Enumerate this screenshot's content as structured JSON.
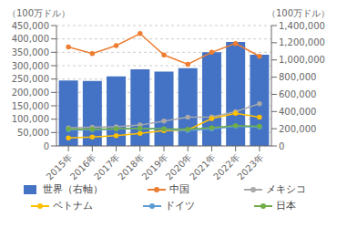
{
  "chart_data": {
    "type": "bar",
    "categories": [
      "2015年",
      "2016年",
      "2017年",
      "2018年",
      "2019年",
      "2020年",
      "2021年",
      "2022年",
      "2023年"
    ],
    "ylabel": "（100万ドル）",
    "y2label": "（100万ドル）",
    "ylim": [
      0,
      450000
    ],
    "yticks": [
      0,
      {
        "value": 50000,
        "label": "50,000"
      },
      {
        "value": 100000,
        "label": "100,000"
      },
      {
        "value": 150000,
        "label": "150,000"
      },
      {
        "value": 200000,
        "label": "200,000"
      },
      {
        "value": 250000,
        "label": "250,000"
      },
      {
        "value": 300000,
        "label": "300,000"
      },
      {
        "value": 350000,
        "label": "350,000"
      },
      {
        "value": 400000,
        "label": "400,000"
      },
      {
        "value": 450000,
        "label": "450,000"
      }
    ],
    "y2lim": [
      0,
      1400000
    ],
    "y2ticks": [
      0,
      {
        "value": 200000,
        "label": "200,000"
      },
      {
        "value": 400000,
        "label": "400,000"
      },
      {
        "value": 600000,
        "label": "600,000"
      },
      {
        "value": 800000,
        "label": "800,000"
      },
      {
        "value": 1000000,
        "label": "1,000,000"
      },
      {
        "value": 1200000,
        "label": "1,200,000"
      },
      {
        "value": 1400000,
        "label": "1,400,000"
      }
    ],
    "grid": true,
    "legend": "bottom",
    "series": [
      {
        "name": "世界（右軸）",
        "type": "bar",
        "axis": "y2",
        "color": "#4472C4",
        "values": [
          760000,
          755000,
          810000,
          890000,
          865000,
          905000,
          1090000,
          1210000,
          1060000
        ]
      },
      {
        "name": "中国",
        "type": "line",
        "marker": "circle",
        "color": "#ED7D31",
        "values": [
          370000,
          345000,
          375000,
          420000,
          340000,
          305000,
          350000,
          383000,
          335000
        ]
      },
      {
        "name": "メキシコ",
        "type": "line",
        "marker": "circle",
        "color": "#A9A9A9",
        "values": [
          67000,
          70000,
          72000,
          78000,
          93000,
          107000,
          108000,
          128000,
          158000
        ]
      },
      {
        "name": "ベトナム",
        "type": "line",
        "marker": "circle",
        "color": "#FFC000",
        "values": [
          30000,
          33000,
          38000,
          47000,
          57000,
          60000,
          102000,
          122000,
          107000
        ]
      },
      {
        "name": "ドイツ",
        "type": "line",
        "marker": "circle",
        "color": "#5B9BD5",
        "values": [
          60000,
          60000,
          63000,
          65000,
          63000,
          57000,
          63000,
          73000,
          70000
        ]
      },
      {
        "name": "日本",
        "type": "line",
        "marker": "circle",
        "color": "#70AD47",
        "values": [
          63000,
          62000,
          64000,
          66000,
          64000,
          62000,
          68000,
          76000,
          73000
        ]
      }
    ]
  }
}
